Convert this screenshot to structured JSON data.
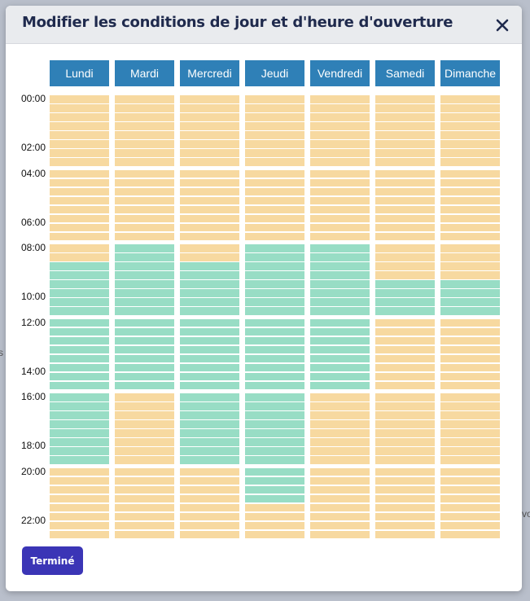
{
  "modal": {
    "title": "Modifier les conditions de jour et d'heure d'ouverture",
    "done_label": "Terminé",
    "close_icon": "close-icon"
  },
  "days": [
    "Lundi",
    "Mardi",
    "Mercredi",
    "Jeudi",
    "Vendredi",
    "Samedi",
    "Dimanche"
  ],
  "hour_labels": [
    "00:00",
    "02:00",
    "04:00",
    "06:00",
    "08:00",
    "10:00",
    "12:00",
    "14:00",
    "16:00",
    "18:00",
    "20:00",
    "22:00"
  ],
  "background_fragments": [
    "s",
    "vo"
  ],
  "colors": {
    "open": "#98ddc5",
    "closed": "#f7d9a0",
    "day_header": "#2f80b7",
    "done_button": "#3b35b6",
    "title": "#1f2a4d"
  },
  "schedule": [
    {
      "day": "Lundi",
      "open_hours": [
        9,
        10,
        11,
        12,
        13,
        14,
        15,
        16,
        17,
        18,
        19
      ]
    },
    {
      "day": "Mardi",
      "open_hours": [
        8,
        9,
        10,
        11,
        12,
        13,
        14,
        15
      ]
    },
    {
      "day": "Mercredi",
      "open_hours": [
        9,
        10,
        11,
        12,
        13,
        14,
        15,
        16,
        17,
        18,
        19
      ]
    },
    {
      "day": "Jeudi",
      "open_hours": [
        8,
        9,
        10,
        11,
        12,
        13,
        14,
        15,
        16,
        17,
        18,
        19,
        20,
        21
      ]
    },
    {
      "day": "Vendredi",
      "open_hours": [
        8,
        9,
        10,
        11,
        12,
        13,
        14,
        15
      ]
    },
    {
      "day": "Samedi",
      "open_hours": [
        10,
        11
      ]
    },
    {
      "day": "Dimanche",
      "open_hours": [
        10,
        11
      ]
    }
  ]
}
